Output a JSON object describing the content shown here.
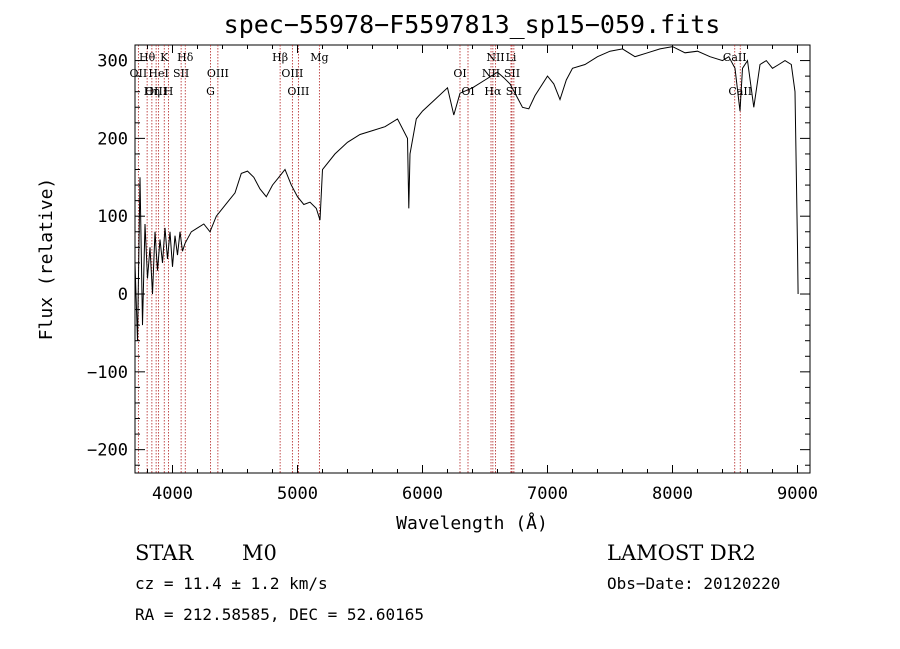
{
  "chart_data": {
    "type": "line",
    "title": "spec−55978−F5597813_sp15−059.fits",
    "xlabel": "Wavelength (Å)",
    "ylabel": "Flux (relative)",
    "xlim": [
      3700,
      9100
    ],
    "ylim": [
      -230,
      320
    ],
    "x_ticks": [
      4000,
      5000,
      6000,
      7000,
      8000,
      9000
    ],
    "x_tick_labels": [
      "4000",
      "5000",
      "6000",
      "7000",
      "8000",
      "9000"
    ],
    "y_ticks": [
      -200,
      -100,
      0,
      100,
      200,
      300
    ],
    "y_tick_labels": [
      "−200",
      "−100",
      "0",
      "100",
      "200",
      "300"
    ],
    "grid": false,
    "series": [
      {
        "points": [
          [
            3700,
            40
          ],
          [
            3720,
            -60
          ],
          [
            3740,
            150
          ],
          [
            3760,
            -40
          ],
          [
            3780,
            90
          ],
          [
            3800,
            20
          ],
          [
            3820,
            60
          ],
          [
            3840,
            0
          ],
          [
            3860,
            80
          ],
          [
            3880,
            30
          ],
          [
            3900,
            70
          ],
          [
            3920,
            40
          ],
          [
            3940,
            85
          ],
          [
            3960,
            45
          ],
          [
            3980,
            80
          ],
          [
            4000,
            35
          ],
          [
            4020,
            75
          ],
          [
            4040,
            50
          ],
          [
            4060,
            80
          ],
          [
            4080,
            55
          ],
          [
            4100,
            65
          ],
          [
            4150,
            80
          ],
          [
            4200,
            85
          ],
          [
            4250,
            90
          ],
          [
            4300,
            80
          ],
          [
            4350,
            100
          ],
          [
            4400,
            110
          ],
          [
            4450,
            120
          ],
          [
            4500,
            130
          ],
          [
            4550,
            155
          ],
          [
            4600,
            158
          ],
          [
            4650,
            150
          ],
          [
            4700,
            135
          ],
          [
            4750,
            125
          ],
          [
            4800,
            140
          ],
          [
            4850,
            150
          ],
          [
            4900,
            160
          ],
          [
            4950,
            140
          ],
          [
            5000,
            125
          ],
          [
            5050,
            115
          ],
          [
            5100,
            118
          ],
          [
            5150,
            110
          ],
          [
            5180,
            95
          ],
          [
            5200,
            160
          ],
          [
            5300,
            180
          ],
          [
            5400,
            195
          ],
          [
            5500,
            205
          ],
          [
            5600,
            210
          ],
          [
            5700,
            215
          ],
          [
            5800,
            225
          ],
          [
            5880,
            200
          ],
          [
            5890,
            110
          ],
          [
            5900,
            180
          ],
          [
            5950,
            225
          ],
          [
            6000,
            235
          ],
          [
            6100,
            250
          ],
          [
            6200,
            265
          ],
          [
            6250,
            230
          ],
          [
            6300,
            258
          ],
          [
            6400,
            265
          ],
          [
            6500,
            275
          ],
          [
            6550,
            280
          ],
          [
            6600,
            285
          ],
          [
            6650,
            278
          ],
          [
            6700,
            270
          ],
          [
            6750,
            255
          ],
          [
            6800,
            240
          ],
          [
            6850,
            238
          ],
          [
            6900,
            255
          ],
          [
            7000,
            280
          ],
          [
            7050,
            270
          ],
          [
            7100,
            250
          ],
          [
            7150,
            275
          ],
          [
            7200,
            290
          ],
          [
            7300,
            295
          ],
          [
            7400,
            305
          ],
          [
            7500,
            312
          ],
          [
            7600,
            315
          ],
          [
            7700,
            305
          ],
          [
            7800,
            310
          ],
          [
            7900,
            315
          ],
          [
            8000,
            318
          ],
          [
            8100,
            310
          ],
          [
            8200,
            312
          ],
          [
            8300,
            305
          ],
          [
            8400,
            300
          ],
          [
            8450,
            305
          ],
          [
            8500,
            290
          ],
          [
            8540,
            235
          ],
          [
            8560,
            290
          ],
          [
            8600,
            300
          ],
          [
            8650,
            240
          ],
          [
            8700,
            295
          ],
          [
            8750,
            300
          ],
          [
            8800,
            290
          ],
          [
            8850,
            295
          ],
          [
            8900,
            300
          ],
          [
            8950,
            295
          ],
          [
            8980,
            260
          ],
          [
            9000,
            60
          ],
          [
            9005,
            0
          ]
        ]
      }
    ],
    "lines": [
      {
        "label": "Hθ",
        "x": 3797,
        "row": 0
      },
      {
        "label": "K",
        "x": 3934,
        "row": 0
      },
      {
        "label": "Hδ",
        "x": 4102,
        "row": 0
      },
      {
        "label": "Hβ",
        "x": 4861,
        "row": 0
      },
      {
        "label": "Mg",
        "x": 5175,
        "row": 0
      },
      {
        "label": "NII",
        "x": 6584,
        "row": 0
      },
      {
        "label": "Li",
        "x": 6708,
        "row": 0
      },
      {
        "label": "CaII",
        "x": 8498,
        "row": 0
      },
      {
        "label": "OII",
        "x": 3727,
        "row": 1
      },
      {
        "label": "HeI",
        "x": 3889,
        "row": 1
      },
      {
        "label": "SII",
        "x": 4069,
        "row": 1
      },
      {
        "label": "OIII",
        "x": 4363,
        "row": 1
      },
      {
        "label": "OIII",
        "x": 4959,
        "row": 1
      },
      {
        "label": "OI",
        "x": 6300,
        "row": 1
      },
      {
        "label": "NII",
        "x": 6548,
        "row": 1
      },
      {
        "label": "SII",
        "x": 6716,
        "row": 1
      },
      {
        "label": "OIII",
        "x": 3869,
        "row": 2
      },
      {
        "label": "Hη",
        "x": 3835,
        "row": 2
      },
      {
        "label": "H",
        "x": 3968,
        "row": 2
      },
      {
        "label": "G",
        "x": 4304,
        "row": 2
      },
      {
        "label": "OIII",
        "x": 5007,
        "row": 2
      },
      {
        "label": "OI",
        "x": 6364,
        "row": 2
      },
      {
        "label": "Hα",
        "x": 6563,
        "row": 2
      },
      {
        "label": "SII",
        "x": 6731,
        "row": 2
      },
      {
        "label": "CaII",
        "x": 8542,
        "row": 2
      }
    ]
  },
  "info": {
    "object_class": "STAR",
    "subclass": "M0",
    "survey": "LAMOST DR2",
    "cz": "cz = 11.4 ± 1.2 km/s",
    "obs_date": "Obs−Date: 20120220",
    "coords": "RA = 212.58585, DEC =  52.60165"
  },
  "colors": {
    "spectrum": "#000000",
    "line_markers": "#b22222",
    "axes": "#000000",
    "background": "#ffffff"
  }
}
